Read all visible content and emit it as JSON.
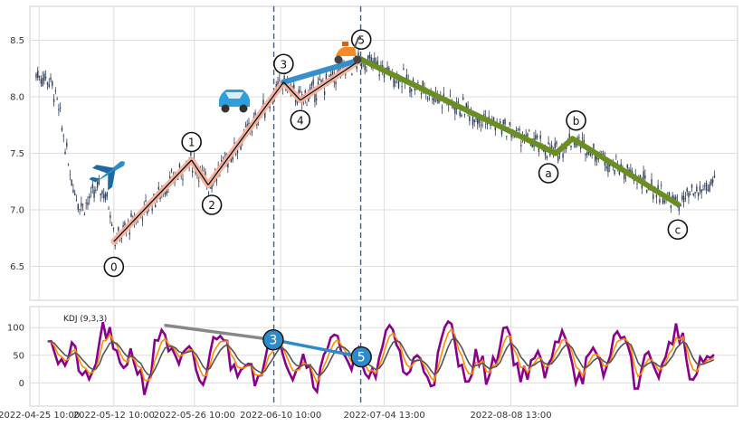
{
  "chart_data": [
    {
      "type": "candlestick",
      "panel": "price",
      "ylim": [
        6.2,
        8.8
      ],
      "y_ticks": [
        "6.5",
        "7.0",
        "7.5",
        "8.0",
        "8.5"
      ],
      "y_tick_values": [
        6.5,
        7.0,
        7.5,
        8.0,
        8.5
      ],
      "grid": true,
      "x_range_days": [
        -1.6,
        121.4
      ],
      "impulse_wave": {
        "labels": [
          "0",
          "1",
          "2",
          "3",
          "4",
          "5"
        ],
        "points": [
          {
            "day": 13.0,
            "value": 6.72
          },
          {
            "day": 26.5,
            "value": 7.44
          },
          {
            "day": 29.4,
            "value": 7.22
          },
          {
            "day": 42.5,
            "value": 8.13
          },
          {
            "day": 45.4,
            "value": 7.97
          },
          {
            "day": 56.0,
            "value": 8.33
          }
        ],
        "colors": {
          "wave_1": "#f5b3a0",
          "wave_3": "#f5b3a0",
          "wave_5": "#2e8bc9",
          "line": "#111111"
        }
      },
      "corrective_wave": {
        "labels": [
          "a",
          "b",
          "c"
        ],
        "points": [
          {
            "day": 56.0,
            "value": 8.33
          },
          {
            "day": 89.8,
            "value": 7.5
          },
          {
            "day": 92.7,
            "value": 7.63
          },
          {
            "day": 111.0,
            "value": 7.05
          }
        ],
        "color": "#6b8e23"
      },
      "vlines_days": [
        40.8,
        55.9
      ],
      "icons": [
        "airplane-icon",
        "car-icon",
        "scooter-icon"
      ]
    },
    {
      "type": "line",
      "panel": "indicator",
      "title": "KDJ (9,3,3)",
      "ylim": [
        -42,
        138
      ],
      "y_ticks": [
        "0",
        "50",
        "100"
      ],
      "y_tick_values": [
        0,
        50,
        100
      ],
      "x_ticks": [
        "2022-04-25 10:00",
        "2022-05-12 10:00",
        "2022-05-26 10:00",
        "2022-06-10 10:00",
        "2022-07-04 13:00",
        "2022-08-08 13:00"
      ],
      "x_tick_days": [
        0,
        13,
        27,
        42,
        60,
        82
      ],
      "series_colors": [
        "#8b008b",
        "#ff8c00",
        "#555555"
      ],
      "divergence_lines": [
        {
          "from_day": 22.0,
          "from_value": 104,
          "to_day": 40.7,
          "to_value": 78,
          "color": "#888888"
        },
        {
          "from_day": 40.7,
          "from_value": 78,
          "to_day": 56.0,
          "to_value": 47,
          "color": "#2e8bc9"
        }
      ],
      "markers": [
        {
          "label": "3",
          "day": 40.7,
          "value": 78
        },
        {
          "label": "5",
          "day": 56.0,
          "value": 47
        }
      ],
      "marker_color": "#2e8bc9"
    }
  ]
}
